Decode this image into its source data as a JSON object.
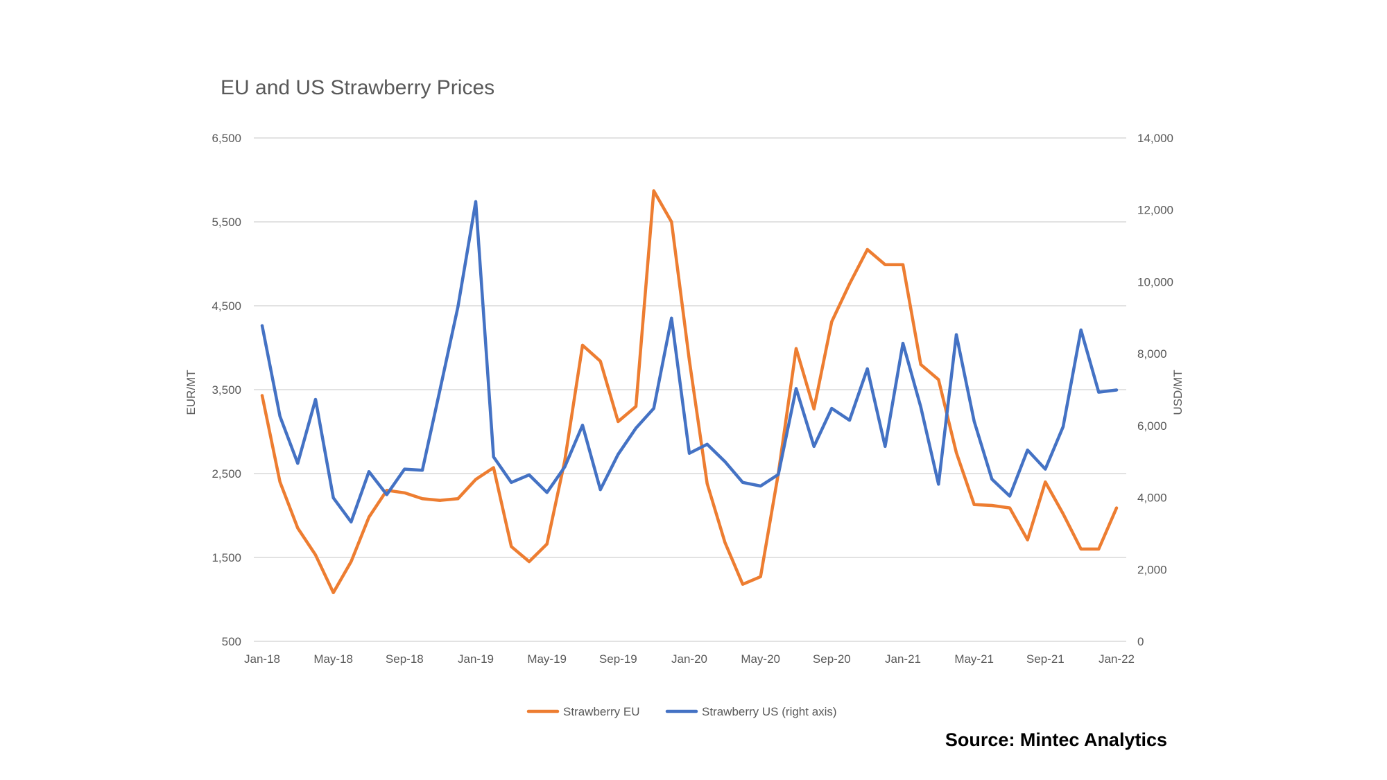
{
  "chart_data": {
    "type": "line",
    "title": "EU and US Strawberry Prices",
    "x": [
      "Jan-18",
      "Feb-18",
      "Mar-18",
      "Apr-18",
      "May-18",
      "Jun-18",
      "Jul-18",
      "Aug-18",
      "Sep-18",
      "Oct-18",
      "Nov-18",
      "Dec-18",
      "Jan-19",
      "Feb-19",
      "Mar-19",
      "Apr-19",
      "May-19",
      "Jun-19",
      "Jul-19",
      "Aug-19",
      "Sep-19",
      "Oct-19",
      "Nov-19",
      "Dec-19",
      "Jan-20",
      "Feb-20",
      "Mar-20",
      "Apr-20",
      "May-20",
      "Jun-20",
      "Jul-20",
      "Aug-20",
      "Sep-20",
      "Oct-20",
      "Nov-20",
      "Dec-20",
      "Jan-21",
      "Feb-21",
      "Mar-21",
      "Apr-21",
      "May-21",
      "Jun-21",
      "Jul-21",
      "Aug-21",
      "Sep-21",
      "Oct-21",
      "Nov-21",
      "Dec-21",
      "Jan-22"
    ],
    "x_tick_labels": [
      "Jan-18",
      "May-18",
      "Sep-18",
      "Jan-19",
      "May-19",
      "Sep-19",
      "Jan-20",
      "May-20",
      "Sep-20",
      "Jan-21",
      "May-21",
      "Sep-21",
      "Jan-22"
    ],
    "y_left": {
      "label": "EUR/MT",
      "ylim": [
        500,
        6500
      ],
      "ticks": [
        "500",
        "1,500",
        "2,500",
        "3,500",
        "4,500",
        "5,500",
        "6,500"
      ]
    },
    "y_right": {
      "label": "USD/MT",
      "ylim": [
        0,
        14000
      ],
      "ticks": [
        "0",
        "2,000",
        "4,000",
        "6,000",
        "8,000",
        "10,000",
        "12,000",
        "14,000"
      ]
    },
    "grid": true,
    "legend_position": "bottom",
    "series": [
      {
        "name": "Strawberry EU",
        "axis": "left",
        "color": "#ed7d31",
        "values": [
          3430,
          2400,
          1850,
          1530,
          1080,
          1450,
          1980,
          2300,
          2270,
          2200,
          2180,
          2200,
          2430,
          2570,
          1630,
          1450,
          1660,
          2650,
          4030,
          3840,
          3120,
          3300,
          5870,
          5500,
          3850,
          2380,
          1680,
          1180,
          1270,
          2500,
          3990,
          3270,
          4310,
          4760,
          5170,
          4990,
          4990,
          3800,
          3620,
          2750,
          2130,
          2120,
          2090,
          1710,
          2400,
          2020,
          1600,
          1600,
          2090
        ]
      },
      {
        "name": "Strawberry US (right axis)",
        "axis": "right",
        "color": "#4472c4",
        "values": [
          8780,
          6260,
          4950,
          6730,
          3990,
          3320,
          4720,
          4080,
          4790,
          4760,
          7020,
          9300,
          12230,
          5130,
          4420,
          4630,
          4140,
          4850,
          6010,
          4220,
          5200,
          5930,
          6480,
          8990,
          5230,
          5480,
          5000,
          4420,
          4320,
          4640,
          7030,
          5420,
          6480,
          6150,
          7580,
          5420,
          8290,
          6520,
          4370,
          8530,
          6120,
          4510,
          4040,
          5320,
          4790,
          5970,
          8660,
          6930,
          6990
        ]
      }
    ]
  },
  "source": "Source: Mintec Analytics"
}
